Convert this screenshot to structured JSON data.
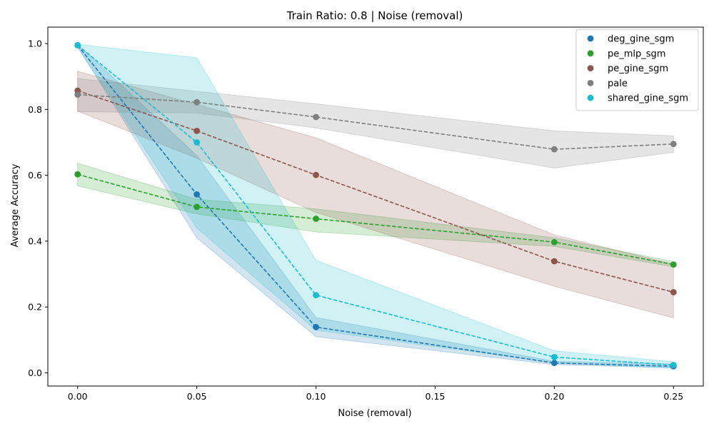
{
  "chart_data": {
    "type": "line",
    "title": "Train Ratio: 0.8 | Noise (removal)",
    "xlabel": "Noise (removal)",
    "ylabel": "Average Accuracy",
    "x": [
      0.0,
      0.05,
      0.1,
      0.2,
      0.25
    ],
    "xticks": [
      "0.00",
      "0.05",
      "0.10",
      "0.15",
      "0.20",
      "0.25"
    ],
    "xtick_values": [
      0.0,
      0.05,
      0.1,
      0.15,
      0.2,
      0.25
    ],
    "yticks": [
      "0.0",
      "0.2",
      "0.4",
      "0.6",
      "0.8",
      "1.0"
    ],
    "ytick_values": [
      0.0,
      0.2,
      0.4,
      0.6,
      0.8,
      1.0
    ],
    "xlim": [
      -0.0125,
      0.2625
    ],
    "ylim": [
      -0.04,
      1.05
    ],
    "grid": false,
    "legend_position": "top-right",
    "series": [
      {
        "name": "deg_gine_sgm",
        "color": "#1f77b4",
        "values": [
          0.995,
          0.542,
          0.139,
          0.03,
          0.02
        ],
        "lower": [
          0.99,
          0.41,
          0.11,
          0.025,
          0.015
        ],
        "upper": [
          0.998,
          0.66,
          0.168,
          0.035,
          0.027
        ]
      },
      {
        "name": "pe_mlp_sgm",
        "color": "#2ca02c",
        "values": [
          0.603,
          0.504,
          0.468,
          0.397,
          0.329
        ],
        "lower": [
          0.568,
          0.483,
          0.428,
          0.384,
          0.322
        ],
        "upper": [
          0.637,
          0.527,
          0.498,
          0.41,
          0.338
        ]
      },
      {
        "name": "pe_gine_sgm",
        "color": "#8c564b",
        "values": [
          0.857,
          0.735,
          0.601,
          0.339,
          0.245
        ],
        "lower": [
          0.795,
          0.652,
          0.487,
          0.263,
          0.167
        ],
        "upper": [
          0.916,
          0.815,
          0.714,
          0.419,
          0.33
        ]
      },
      {
        "name": "pale",
        "color": "#7f7f7f",
        "values": [
          0.845,
          0.822,
          0.777,
          0.679,
          0.695
        ],
        "lower": [
          0.793,
          0.789,
          0.744,
          0.622,
          0.67
        ],
        "upper": [
          0.894,
          0.855,
          0.817,
          0.735,
          0.72
        ]
      },
      {
        "name": "shared_gine_sgm",
        "color": "#17becf",
        "values": [
          0.995,
          0.7,
          0.236,
          0.048,
          0.024
        ],
        "lower": [
          0.99,
          0.44,
          0.13,
          0.03,
          0.015
        ],
        "upper": [
          0.998,
          0.957,
          0.342,
          0.067,
          0.034
        ]
      }
    ]
  }
}
